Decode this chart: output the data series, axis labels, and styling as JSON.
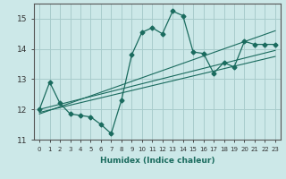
{
  "xlabel": "Humidex (Indice chaleur)",
  "ylabel": "",
  "xlim": [
    -0.5,
    23.5
  ],
  "ylim": [
    11,
    15.5
  ],
  "yticks": [
    11,
    12,
    13,
    14,
    15
  ],
  "xticks": [
    0,
    1,
    2,
    3,
    4,
    5,
    6,
    7,
    8,
    9,
    10,
    11,
    12,
    13,
    14,
    15,
    16,
    17,
    18,
    19,
    20,
    21,
    22,
    23
  ],
  "xtick_labels": [
    "0",
    "1",
    "2",
    "3",
    "4",
    "5",
    "6",
    "7",
    "8",
    "9",
    "10",
    "11",
    "12",
    "13",
    "14",
    "15",
    "16",
    "17",
    "18",
    "19",
    "20",
    "21",
    "22",
    "23"
  ],
  "bg_color": "#cce8e8",
  "grid_color": "#a8cccc",
  "line_color": "#1a6b5e",
  "markersize": 2.5,
  "main_x": [
    0,
    1,
    2,
    3,
    4,
    5,
    6,
    7,
    8,
    9,
    10,
    11,
    12,
    13,
    14,
    15,
    16,
    17,
    18,
    19,
    20,
    21,
    22,
    23
  ],
  "main_y": [
    12.0,
    12.9,
    12.2,
    11.85,
    11.8,
    11.75,
    11.5,
    11.2,
    12.3,
    13.8,
    14.55,
    14.7,
    14.5,
    15.25,
    15.1,
    13.9,
    13.85,
    13.2,
    13.55,
    13.4,
    14.25,
    14.15,
    14.15,
    14.15
  ],
  "trend1_x": [
    0,
    23
  ],
  "trend1_y": [
    11.9,
    13.75
  ],
  "trend2_x": [
    0,
    23
  ],
  "trend2_y": [
    12.0,
    13.95
  ],
  "trend3_x": [
    0,
    23
  ],
  "trend3_y": [
    11.85,
    14.6
  ]
}
